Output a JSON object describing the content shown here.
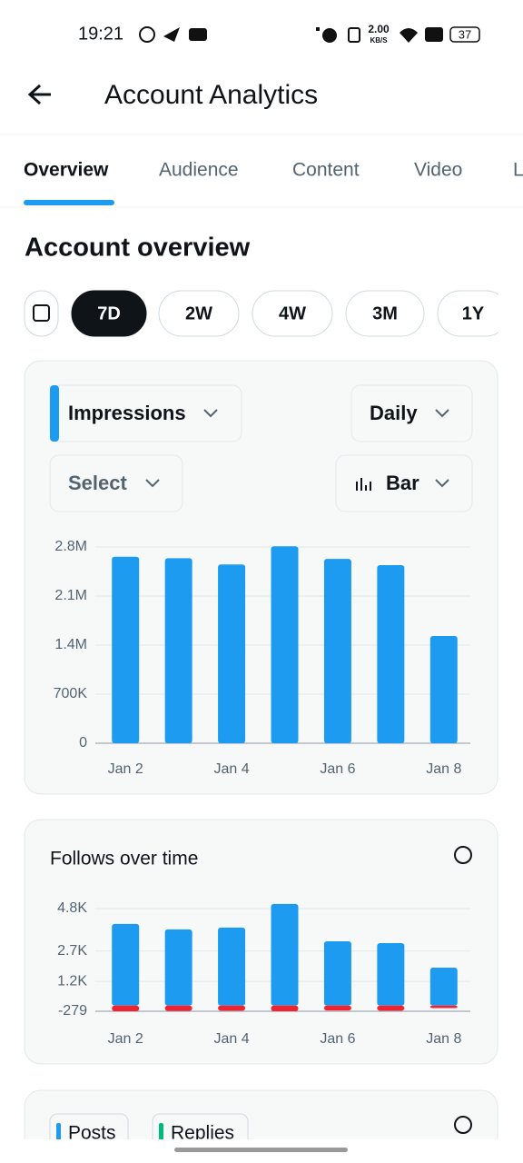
{
  "status_bar": {
    "time": "19:21",
    "net_speed": "2.00",
    "net_unit": "KB/S",
    "battery": "37"
  },
  "header": {
    "title": "Account Analytics"
  },
  "tabs": [
    "Overview",
    "Audience",
    "Content",
    "Video",
    "L"
  ],
  "section_title": "Account overview",
  "ranges": [
    "7D",
    "2W",
    "4W",
    "3M",
    "1Y"
  ],
  "filters": {
    "metric": "Impressions",
    "interval": "Daily",
    "compare": "Select",
    "chart_kind": "Bar"
  },
  "charts": [
    {
      "type": "bar",
      "categories": [
        "Jan 2",
        null,
        "Jan 4",
        null,
        "Jan 6",
        null,
        "Jan 8"
      ],
      "values": [
        2660000,
        2640000,
        2550000,
        2810000,
        2630000,
        2540000,
        1530000
      ],
      "color": "#1d9bf0",
      "ylim": [
        0,
        2800000
      ],
      "yticks": [
        0,
        {
          "value": 700000,
          "label": "700K"
        },
        {
          "value": 1400000,
          "label": "1.4M"
        },
        {
          "value": 2100000,
          "label": "2.1M"
        },
        {
          "value": 2800000,
          "label": "2.8M"
        }
      ],
      "grid": true
    },
    {
      "type": "bar",
      "title": "Follows over time",
      "categories": [
        "Jan 2",
        null,
        "Jan 4",
        null,
        "Jan 6",
        null,
        "Jan 8"
      ],
      "series": [
        {
          "color": "#1d9bf0",
          "values": [
            4040,
            3770,
            3860,
            5030,
            3180,
            3090,
            1880
          ]
        },
        {
          "color": "#f4212e",
          "values": [
            -279,
            -260,
            -250,
            -279,
            -240,
            -250,
            -120
          ]
        }
      ],
      "ylim": [
        -279,
        4800
      ],
      "yticks": [
        -279,
        {
          "value": 1200,
          "label": "1.2K"
        },
        {
          "value": 2700,
          "label": "2.7K"
        },
        {
          "value": 4800,
          "label": "4.8K"
        }
      ],
      "grid": true
    }
  ],
  "next_card": {
    "chips": [
      "Posts",
      "Replies"
    ]
  }
}
